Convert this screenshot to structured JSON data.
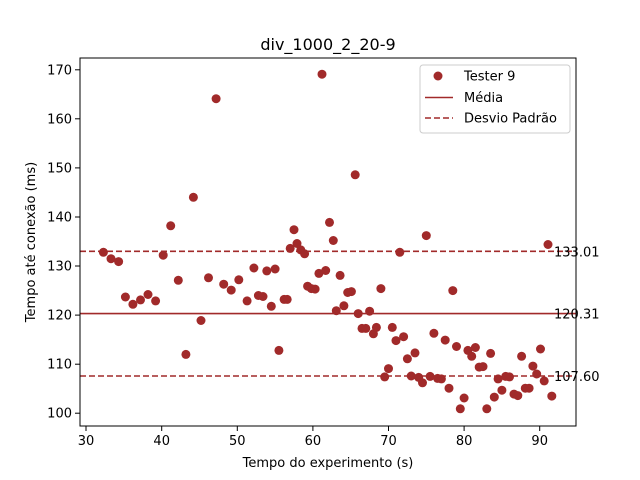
{
  "chart_data": {
    "type": "scatter",
    "title": "div_1000_2_20-9",
    "xlabel": "Tempo do experimento (s)",
    "ylabel": "Tempo até conexão (ms)",
    "xlim": [
      29.2,
      94.8
    ],
    "ylim": [
      97.4,
      172.4
    ],
    "xticks": [
      30,
      40,
      50,
      60,
      70,
      80,
      90
    ],
    "yticks": [
      100,
      110,
      120,
      130,
      140,
      150,
      160,
      170
    ],
    "grid": false,
    "legend_position": "top-right",
    "colors": {
      "points": "#a12a2a",
      "lines": "#a12a2a"
    },
    "series": [
      {
        "name": "Tester 9",
        "points": [
          [
            32.3,
            132.8
          ],
          [
            33.3,
            131.5
          ],
          [
            34.3,
            130.9
          ],
          [
            35.2,
            123.7
          ],
          [
            36.2,
            122.2
          ],
          [
            37.2,
            123.1
          ],
          [
            38.2,
            124.2
          ],
          [
            39.2,
            122.9
          ],
          [
            40.2,
            132.2
          ],
          [
            41.2,
            138.2
          ],
          [
            42.2,
            127.1
          ],
          [
            43.2,
            112.0
          ],
          [
            44.2,
            144.0
          ],
          [
            45.2,
            118.9
          ],
          [
            46.2,
            127.6
          ],
          [
            47.2,
            164.1
          ],
          [
            48.2,
            126.3
          ],
          [
            49.2,
            125.1
          ],
          [
            50.2,
            127.2
          ],
          [
            51.3,
            122.9
          ],
          [
            52.2,
            129.6
          ],
          [
            52.8,
            124.0
          ],
          [
            53.4,
            123.8
          ],
          [
            53.9,
            129.0
          ],
          [
            54.5,
            121.8
          ],
          [
            55.0,
            129.4
          ],
          [
            55.5,
            112.8
          ],
          [
            56.2,
            123.2
          ],
          [
            56.6,
            123.2
          ],
          [
            57.0,
            133.6
          ],
          [
            57.5,
            137.4
          ],
          [
            57.9,
            134.6
          ],
          [
            58.4,
            133.3
          ],
          [
            58.9,
            132.5
          ],
          [
            59.3,
            125.9
          ],
          [
            59.8,
            125.4
          ],
          [
            60.3,
            125.3
          ],
          [
            60.8,
            128.5
          ],
          [
            61.2,
            169.1
          ],
          [
            61.7,
            129.1
          ],
          [
            62.2,
            138.9
          ],
          [
            62.7,
            135.2
          ],
          [
            63.1,
            120.9
          ],
          [
            63.6,
            128.1
          ],
          [
            64.1,
            121.9
          ],
          [
            64.6,
            124.6
          ],
          [
            65.1,
            124.8
          ],
          [
            65.6,
            148.6
          ],
          [
            66.0,
            120.3
          ],
          [
            66.5,
            117.3
          ],
          [
            67.0,
            117.3
          ],
          [
            67.5,
            120.8
          ],
          [
            68.0,
            116.2
          ],
          [
            68.4,
            117.5
          ],
          [
            69.0,
            125.4
          ],
          [
            69.5,
            107.4
          ],
          [
            70.0,
            109.1
          ],
          [
            70.5,
            117.5
          ],
          [
            71.0,
            114.8
          ],
          [
            71.5,
            132.8
          ],
          [
            72.0,
            115.6
          ],
          [
            72.5,
            111.1
          ],
          [
            73.0,
            107.6
          ],
          [
            73.5,
            112.3
          ],
          [
            74.0,
            107.3
          ],
          [
            74.5,
            106.2
          ],
          [
            75.0,
            136.2
          ],
          [
            75.5,
            107.5
          ],
          [
            76.0,
            116.3
          ],
          [
            76.5,
            107.1
          ],
          [
            77.0,
            107.0
          ],
          [
            77.5,
            114.9
          ],
          [
            78.0,
            105.1
          ],
          [
            78.5,
            125.0
          ],
          [
            79.0,
            113.6
          ],
          [
            79.5,
            100.9
          ],
          [
            80.0,
            103.1
          ],
          [
            80.5,
            112.8
          ],
          [
            81.0,
            111.6
          ],
          [
            81.5,
            113.4
          ],
          [
            82.0,
            109.4
          ],
          [
            82.5,
            109.5
          ],
          [
            83.0,
            100.9
          ],
          [
            83.5,
            112.2
          ],
          [
            84.0,
            103.3
          ],
          [
            84.5,
            107.0
          ],
          [
            85.0,
            104.7
          ],
          [
            85.5,
            107.5
          ],
          [
            86.0,
            107.4
          ],
          [
            86.6,
            103.9
          ],
          [
            87.1,
            103.6
          ],
          [
            87.6,
            111.6
          ],
          [
            88.1,
            105.1
          ],
          [
            88.6,
            105.1
          ],
          [
            89.1,
            109.6
          ],
          [
            89.6,
            108.0
          ],
          [
            90.1,
            113.1
          ],
          [
            90.6,
            106.6
          ],
          [
            91.1,
            134.4
          ],
          [
            91.6,
            103.5
          ]
        ]
      }
    ],
    "reference_lines": [
      {
        "name": "Média",
        "value": 120.31,
        "label": "120.31",
        "style": "solid"
      },
      {
        "name": "Desvio Padrão",
        "value": 133.01,
        "label": "133.01",
        "style": "dashed"
      },
      {
        "value": 107.6,
        "label": "107.60",
        "style": "dashed"
      }
    ]
  }
}
